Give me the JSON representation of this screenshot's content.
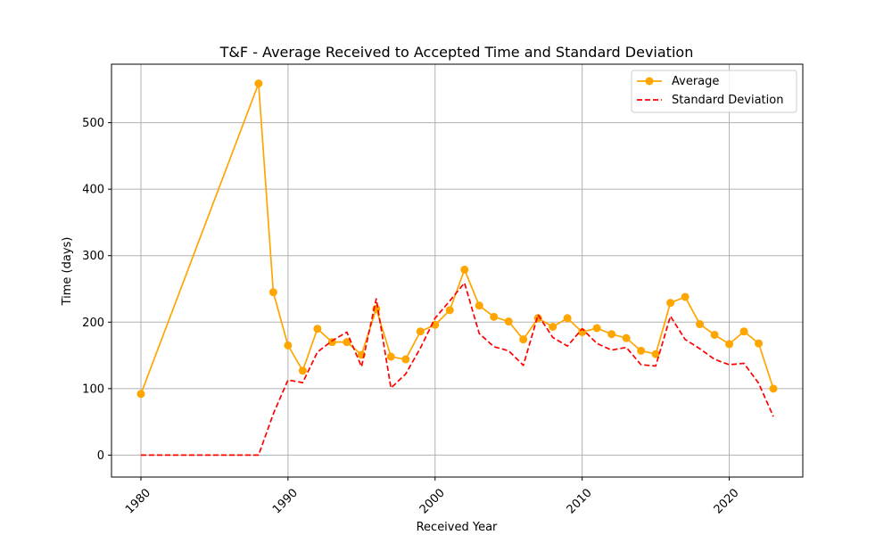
{
  "chart_data": {
    "type": "line",
    "title": "T&F - Average Received to Accepted Time and Standard Deviation",
    "xlabel": "Received Year",
    "ylabel": "Time (days)",
    "xlim": [
      1978,
      2025
    ],
    "ylim": [
      -33,
      588
    ],
    "xticks": [
      1980,
      1990,
      2000,
      2010,
      2020
    ],
    "yticks": [
      0,
      100,
      200,
      300,
      400,
      500
    ],
    "grid": true,
    "legend_position": "top-right",
    "series": [
      {
        "name": "Average",
        "color": "#FFA500",
        "style": "solid",
        "marker": "circle",
        "x": [
          1980,
          1988,
          1989,
          1990,
          1991,
          1992,
          1993,
          1994,
          1995,
          1996,
          1997,
          1998,
          1999,
          2000,
          2001,
          2002,
          2003,
          2004,
          2005,
          2006,
          2007,
          2008,
          2009,
          2010,
          2011,
          2012,
          2013,
          2014,
          2015,
          2016,
          2017,
          2018,
          2019,
          2020,
          2021,
          2022,
          2023
        ],
        "y": [
          92,
          559,
          245,
          165,
          127,
          190,
          170,
          170,
          151,
          220,
          148,
          144,
          186,
          196,
          218,
          279,
          225,
          208,
          201,
          174,
          206,
          193,
          206,
          185,
          191,
          182,
          176,
          157,
          152,
          229,
          238,
          197,
          181,
          167,
          186,
          168,
          100
        ]
      },
      {
        "name": "Standard Deviation",
        "color": "#FF0000",
        "style": "dashed",
        "marker": "none",
        "x": [
          1980,
          1988,
          1989,
          1990,
          1991,
          1992,
          1993,
          1994,
          1995,
          1996,
          1997,
          1998,
          1999,
          2000,
          2001,
          2002,
          2003,
          2004,
          2005,
          2006,
          2007,
          2008,
          2009,
          2010,
          2011,
          2012,
          2013,
          2014,
          2015,
          2016,
          2017,
          2018,
          2019,
          2020,
          2021,
          2022,
          2023
        ],
        "y": [
          0,
          0,
          62,
          113,
          109,
          155,
          172,
          185,
          133,
          235,
          101,
          122,
          161,
          206,
          232,
          259,
          183,
          163,
          157,
          135,
          211,
          177,
          164,
          190,
          168,
          158,
          162,
          136,
          134,
          209,
          174,
          160,
          144,
          136,
          138,
          108,
          58
        ]
      }
    ]
  }
}
